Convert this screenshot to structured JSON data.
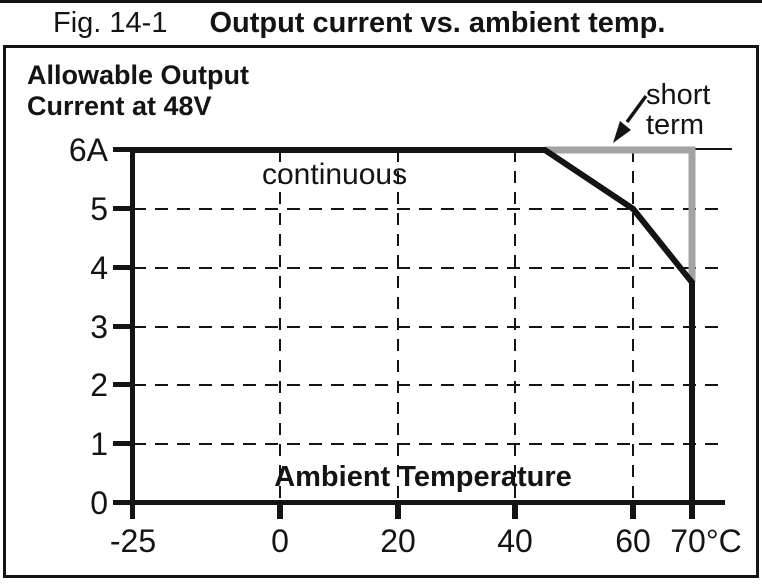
{
  "page": {
    "title_prefix": "Fig. 14-1",
    "title_main": "Output current vs. ambient temp."
  },
  "figure": {
    "heading_line1": "Allowable Output",
    "heading_line2": "Current at 48V",
    "continuous_label": "continuous",
    "x_axis_title": "Ambient Temperature"
  },
  "colors": {
    "ink": "#141414",
    "short_term_line": "#a3a3a3",
    "background": "#ffffff"
  },
  "chart_data": {
    "type": "line",
    "title": "Output current vs. ambient temp.",
    "ylabel": "Allowable Output Current at 48V",
    "xlabel": "Ambient Temperature",
    "x_unit": "°C",
    "y_unit": "A",
    "xlim": [
      -25,
      75
    ],
    "ylim": [
      0,
      6
    ],
    "grid": "dashed",
    "legend_position": "inline-annotations",
    "x_ticks": [
      {
        "value": -25,
        "label": "-25"
      },
      {
        "value": 0,
        "label": "0"
      },
      {
        "value": 20,
        "label": "20"
      },
      {
        "value": 40,
        "label": "40"
      },
      {
        "value": 60,
        "label": "60"
      },
      {
        "value": 70,
        "label": "70°C"
      }
    ],
    "y_ticks": [
      {
        "value": 0,
        "label": "0"
      },
      {
        "value": 1,
        "label": "1"
      },
      {
        "value": 2,
        "label": "2"
      },
      {
        "value": 3,
        "label": "3"
      },
      {
        "value": 4,
        "label": "4"
      },
      {
        "value": 5,
        "label": "5"
      },
      {
        "value": 6,
        "label": "6A"
      }
    ],
    "series": [
      {
        "name": "continuous",
        "color": "#141414",
        "points": [
          [
            -25,
            6
          ],
          [
            45,
            6
          ],
          [
            60,
            5
          ],
          [
            70,
            3.75
          ],
          [
            70,
            0
          ]
        ]
      },
      {
        "name": "short term",
        "color": "#a3a3a3",
        "points": [
          [
            45,
            6
          ],
          [
            70,
            6
          ],
          [
            70,
            3.75
          ]
        ]
      }
    ],
    "annotation": {
      "text": "short term",
      "lines": [
        "short",
        "term"
      ]
    }
  }
}
